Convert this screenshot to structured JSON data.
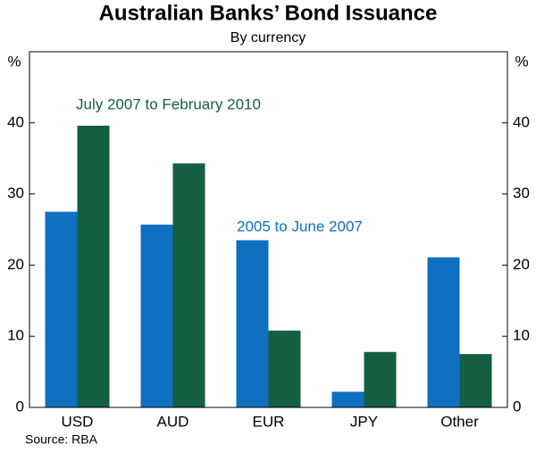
{
  "chart_data": {
    "type": "bar",
    "title": "Australian Banks’ Bond Issuance",
    "subtitle": "By currency",
    "y_unit": "%",
    "source": "Source: RBA",
    "categories": [
      "USD",
      "AUD",
      "EUR",
      "JPY",
      "Other"
    ],
    "series": [
      {
        "name": "2005 to June 2007",
        "color": "#0f6fc0",
        "values": [
          27.5,
          25.7,
          23.5,
          2.2,
          21.1
        ]
      },
      {
        "name": "July 2007 to February 2010",
        "color": "#145e41",
        "values": [
          39.6,
          34.3,
          10.8,
          7.8,
          7.5
        ]
      }
    ],
    "ylim": [
      0,
      50
    ],
    "yticks": [
      0,
      10,
      20,
      30,
      40
    ],
    "y2lim": [
      0,
      50
    ],
    "y2ticks": [
      0,
      10,
      20,
      30,
      40
    ],
    "grid": false
  }
}
